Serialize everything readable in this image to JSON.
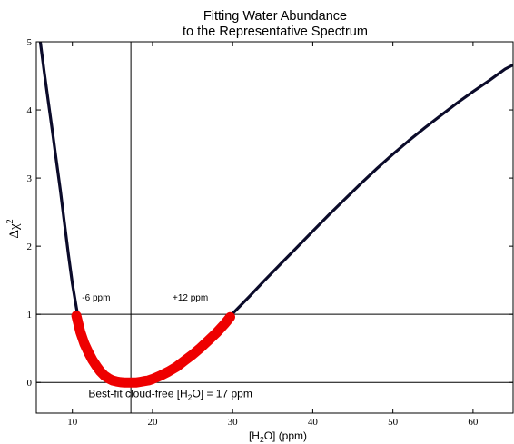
{
  "chart_data": {
    "type": "line",
    "title_lines": [
      "Fitting Water Abundance",
      "to the Representative Spectrum"
    ],
    "xlabel": {
      "prefix": "[H",
      "sub": "2",
      "suffix": "O] (ppm)"
    },
    "ylabel": {
      "main": "Δχ",
      "sup": "2"
    },
    "xlim": [
      5.5,
      65
    ],
    "ylim": [
      -0.45,
      5
    ],
    "x_ticks": [
      10,
      20,
      30,
      40,
      50,
      60
    ],
    "y_ticks": [
      0,
      1,
      2,
      3,
      4,
      5
    ],
    "grid": false,
    "reference_lines": {
      "vertical_x": 17.3,
      "horizontal_y": [
        0,
        1
      ]
    },
    "series": [
      {
        "color": "#0b0b2a",
        "x": [
          6.0,
          6.5,
          7.0,
          7.5,
          8.0,
          8.5,
          9.0,
          9.5,
          10.0,
          10.5,
          11.0,
          12.0,
          13.0,
          14.0,
          15.0,
          16.0,
          17.0,
          17.3,
          18.0,
          19.0,
          20.0,
          21.0,
          22.0,
          23.0,
          24.0,
          25.0,
          26.0,
          27.0,
          28.0,
          29.0,
          29.7,
          30.0,
          32.0,
          34.0,
          36.0,
          38.0,
          40.0,
          42.0,
          44.0,
          46.0,
          48.0,
          50.0,
          52.0,
          54.0,
          56.0,
          58.0,
          60.0,
          62.0,
          64.0,
          65.0
        ],
        "y": [
          5.0,
          4.55,
          4.12,
          3.7,
          3.25,
          2.82,
          2.35,
          1.88,
          1.45,
          1.1,
          0.78,
          0.47,
          0.24,
          0.09,
          0.03,
          0.01,
          0.0,
          0.0,
          0.0,
          0.02,
          0.05,
          0.1,
          0.17,
          0.24,
          0.33,
          0.42,
          0.52,
          0.64,
          0.75,
          0.88,
          0.97,
          1.01,
          1.25,
          1.5,
          1.74,
          1.98,
          2.22,
          2.46,
          2.69,
          2.92,
          3.14,
          3.35,
          3.55,
          3.74,
          3.92,
          4.1,
          4.27,
          4.43,
          4.6,
          4.66
        ]
      },
      {
        "color": "#ee0000",
        "x": [
          10.5,
          11.0,
          11.5,
          12.0,
          12.5,
          13.0,
          13.5,
          14.0,
          14.5,
          15.0,
          15.5,
          16.0,
          16.5,
          17.0,
          17.5,
          18.0,
          18.5,
          19.0,
          19.5,
          20.0,
          21.0,
          22.0,
          23.0,
          24.0,
          25.0,
          26.0,
          27.0,
          28.0,
          29.0,
          29.7
        ],
        "y": [
          0.98,
          0.74,
          0.57,
          0.44,
          0.33,
          0.24,
          0.16,
          0.1,
          0.06,
          0.03,
          0.015,
          0.005,
          0.0,
          0.0,
          0.0,
          0.0,
          0.01,
          0.02,
          0.03,
          0.05,
          0.1,
          0.16,
          0.23,
          0.32,
          0.41,
          0.51,
          0.62,
          0.73,
          0.86,
          0.96
        ]
      }
    ],
    "annotations": [
      {
        "text": "-6 ppm",
        "x": 11.2,
        "y": 1.2
      },
      {
        "text": "+12 ppm",
        "x": 22.5,
        "y": 1.2
      },
      {
        "text_prefix": "Best-fit cloud-free [H",
        "text_sub": "2",
        "text_suffix": "O] = 17 ppm",
        "x": 12.0,
        "y": -0.22
      }
    ]
  }
}
